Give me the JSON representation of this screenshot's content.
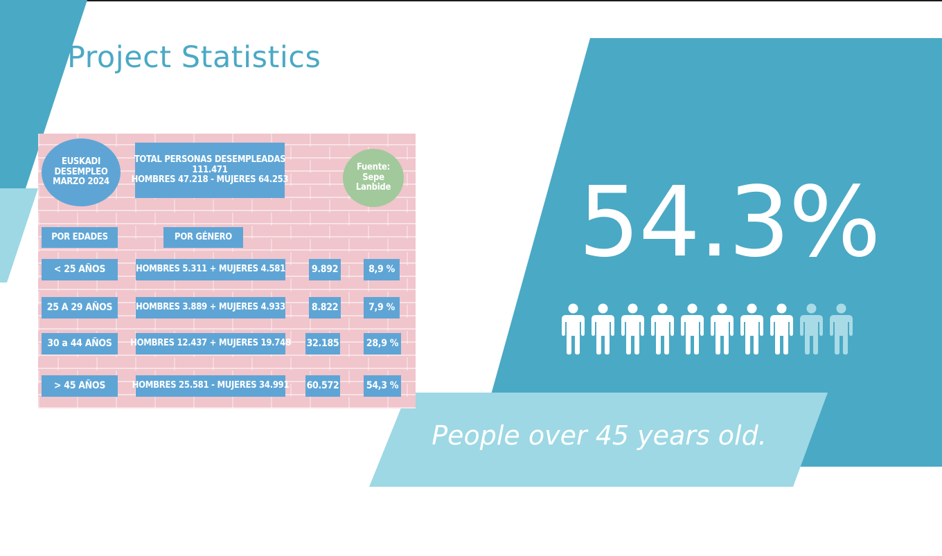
{
  "slide": {
    "title": "Project Statistics",
    "headline_value": "54.3%",
    "caption": "People over 45 years old.",
    "people_icons": {
      "total": 10,
      "highlighted": 8
    },
    "colors": {
      "primary": "#4aa9c5",
      "light": "#9dd8e4",
      "icon_dim": "#a9dbe7",
      "infographic_bg": "#f0c5cc",
      "infographic_box": "#5ea5d6",
      "infographic_source": "#a2c99b"
    }
  },
  "infographic": {
    "region_circle": [
      "EUSKADI",
      "DESEMPLEO",
      "MARZO 2024"
    ],
    "total_box": [
      "TOTAL PERSONAS DESEMPLEADAS",
      "111.471",
      "HOMBRES 47.218 - MUJERES 64.253"
    ],
    "source_circle": [
      "Fuente:",
      "Sepe",
      "Lanbide"
    ],
    "headers": {
      "ages": "POR EDADES",
      "gender": "POR GÉNERO"
    },
    "rows": [
      {
        "age": "< 25 AÑOS",
        "gender": "HOMBRES 5.311 + MUJERES 4.581",
        "total": "9.892",
        "pct": "8,9 %"
      },
      {
        "age": "25 A 29 AÑOS",
        "gender": "HOMBRES 3.889 + MUJERES 4.933",
        "total": "8.822",
        "pct": "7,9 %"
      },
      {
        "age": "30 a 44 AÑOS",
        "gender": "HOMBRES 12.437 + MUJERES 19.748",
        "total": "32.185",
        "pct": "28,9 %"
      },
      {
        "age": "> 45 AÑOS",
        "gender": "HOMBRES 25.581 - MUJERES 34.991",
        "total": "60.572",
        "pct": "54,3 %"
      }
    ]
  }
}
